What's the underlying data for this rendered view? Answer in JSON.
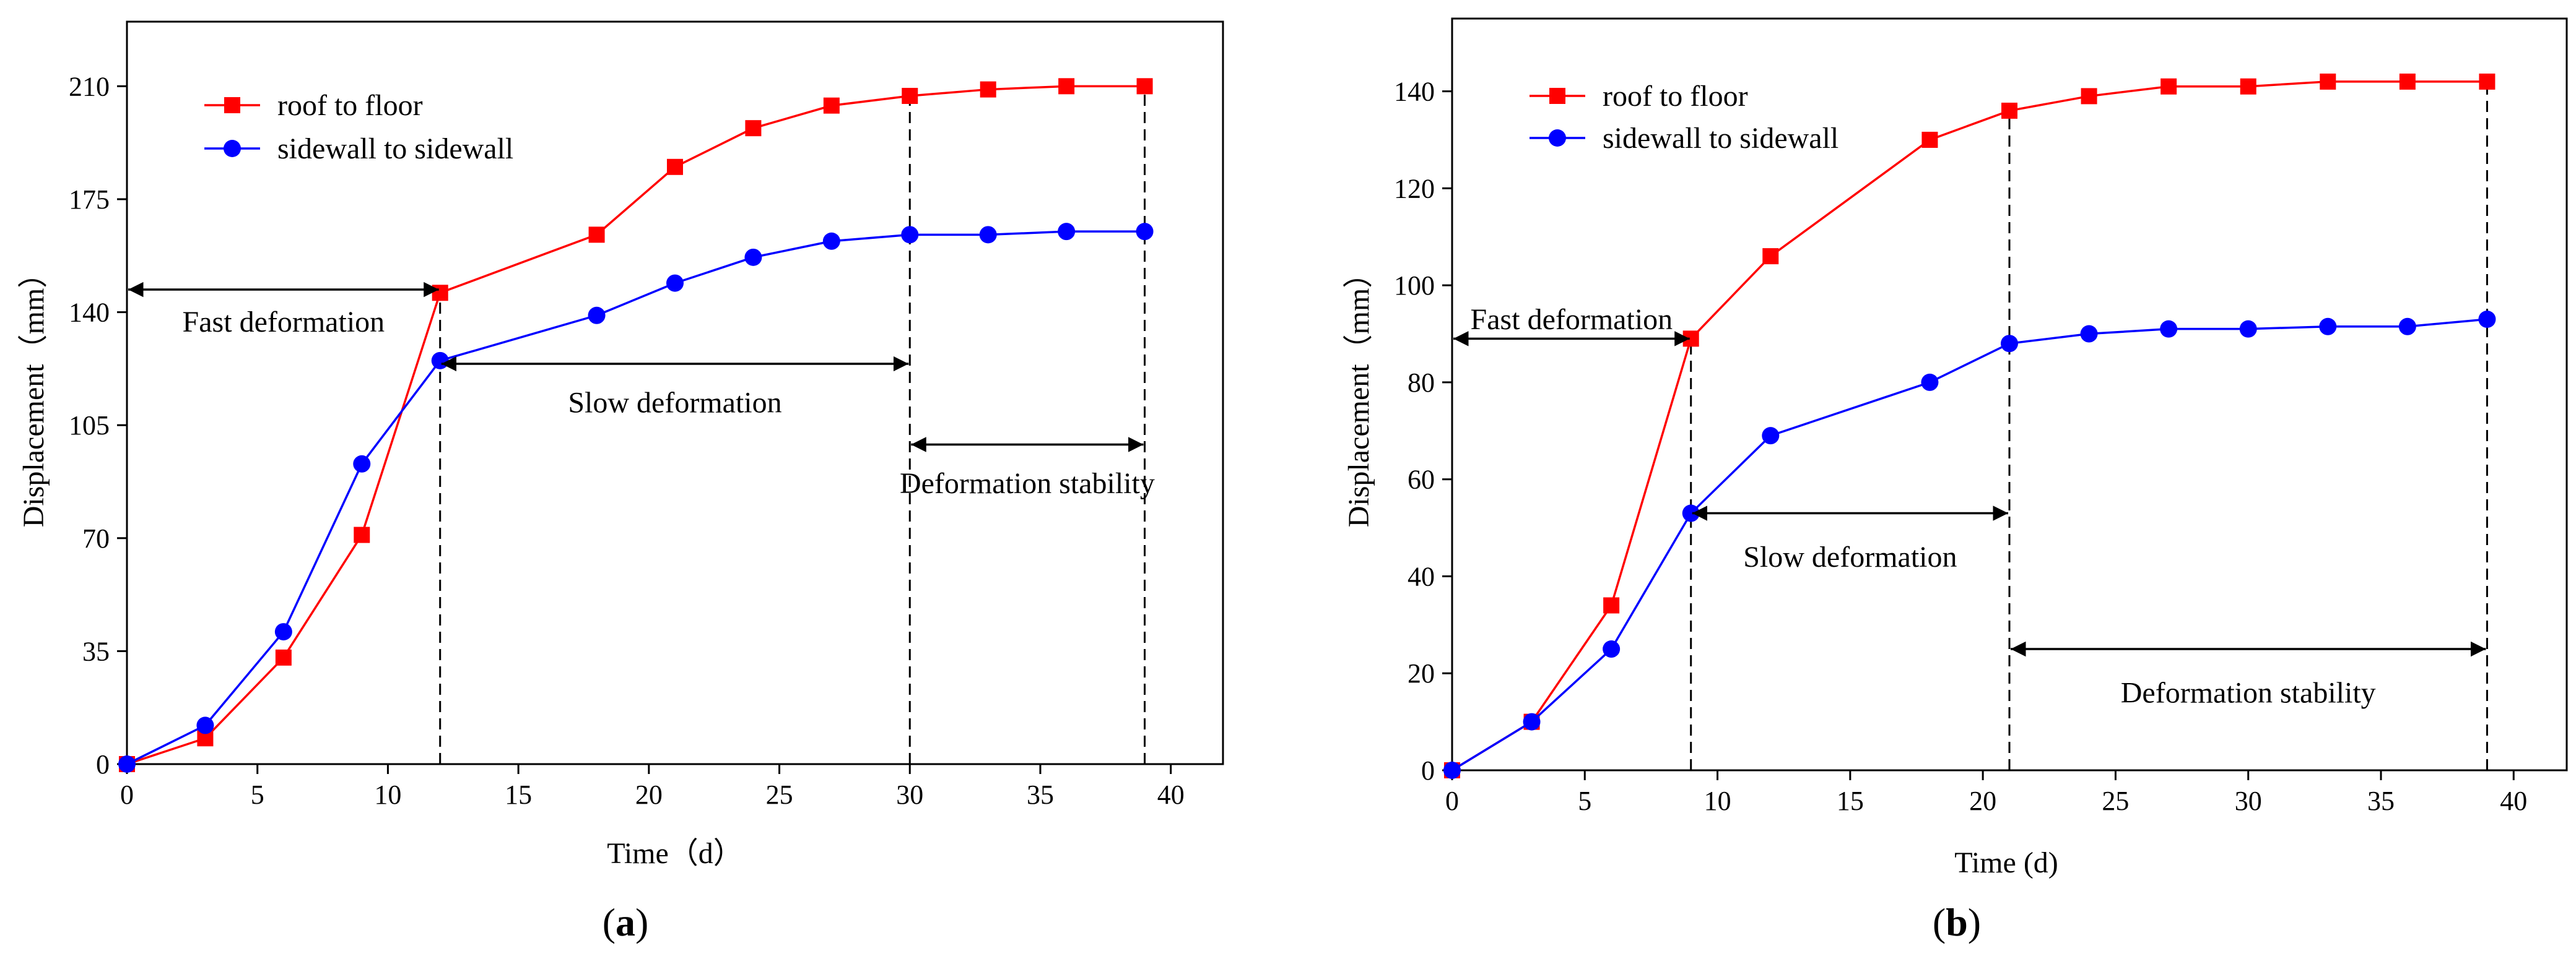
{
  "chart_data": [
    {
      "type": "line",
      "panel_label": "(a)",
      "panel_open": "(",
      "panel_letter": "a",
      "panel_close": ")",
      "xlabel": "Time（d）",
      "ylabel": "Displacement（mm）",
      "xlim": [
        0,
        42
      ],
      "ylim": [
        0,
        230
      ],
      "xticks": [
        0,
        5,
        10,
        15,
        20,
        25,
        30,
        35,
        40
      ],
      "yticks": [
        0,
        35,
        70,
        105,
        140,
        175,
        210
      ],
      "series": [
        {
          "name": "roof to floor",
          "color": "#ff0000",
          "marker": "square",
          "x": [
            0,
            3,
            6,
            9,
            12,
            18,
            21,
            24,
            27,
            30,
            33,
            36,
            39
          ],
          "y": [
            0,
            8,
            33,
            71,
            146,
            164,
            185,
            197,
            204,
            207,
            209,
            210,
            210
          ]
        },
        {
          "name": "sidewall to sidewall",
          "color": "#0000ff",
          "marker": "circle",
          "x": [
            0,
            3,
            6,
            9,
            12,
            18,
            21,
            24,
            27,
            30,
            33,
            36,
            39
          ],
          "y": [
            0,
            12,
            41,
            93,
            125,
            139,
            149,
            157,
            162,
            164,
            164,
            165,
            165
          ]
        }
      ],
      "vlines": [
        12,
        30,
        39
      ],
      "annotations": [
        {
          "id": "fast",
          "text": "Fast deformation",
          "x_start": 0,
          "x_end": 12,
          "y_arrow": 147,
          "y_text": 137
        },
        {
          "id": "slow",
          "text": "Slow deformation",
          "x_start": 12,
          "x_end": 30,
          "y_arrow": 124,
          "y_text": 112
        },
        {
          "id": "stable",
          "text": "Deformation stability",
          "x_start": 30,
          "x_end": 39,
          "y_arrow": 99,
          "y_text": 87
        }
      ],
      "legend_position": "top-left"
    },
    {
      "type": "line",
      "panel_label": "(b)",
      "panel_open": "(",
      "panel_letter": "b",
      "panel_close": ")",
      "xlabel": "Time (d)",
      "ylabel": "Displacement（mm）",
      "xlim": [
        0,
        42
      ],
      "ylim": [
        0,
        155
      ],
      "xticks": [
        0,
        5,
        10,
        15,
        20,
        25,
        30,
        35,
        40
      ],
      "yticks": [
        0,
        20,
        40,
        60,
        80,
        100,
        120,
        140
      ],
      "series": [
        {
          "name": "roof to floor",
          "color": "#ff0000",
          "marker": "square",
          "x": [
            0,
            3,
            6,
            9,
            12,
            18,
            21,
            24,
            27,
            30,
            33,
            36,
            39
          ],
          "y": [
            0,
            10,
            34,
            89,
            106,
            130,
            136,
            139,
            141,
            141,
            142,
            142,
            142
          ]
        },
        {
          "name": "sidewall to sidewall",
          "color": "#0000ff",
          "marker": "circle",
          "x": [
            0,
            3,
            6,
            9,
            12,
            18,
            21,
            24,
            27,
            30,
            33,
            36,
            39
          ],
          "y": [
            0,
            10,
            25,
            53,
            69,
            80,
            88,
            90,
            91,
            91,
            91.5,
            91.5,
            93
          ]
        }
      ],
      "vlines": [
        9,
        21,
        39
      ],
      "annotations": [
        {
          "id": "fast",
          "text": "Fast deformation",
          "x_start": 0,
          "x_end": 9,
          "y_arrow": 89,
          "y_text": 93
        },
        {
          "id": "slow",
          "text": "Slow deformation",
          "x_start": 9,
          "x_end": 21,
          "y_arrow": 53,
          "y_text": 44
        },
        {
          "id": "stable",
          "text": "Deformation stability",
          "x_start": 21,
          "x_end": 39,
          "y_arrow": 25,
          "y_text": 16
        }
      ],
      "legend_position": "top-left"
    }
  ]
}
